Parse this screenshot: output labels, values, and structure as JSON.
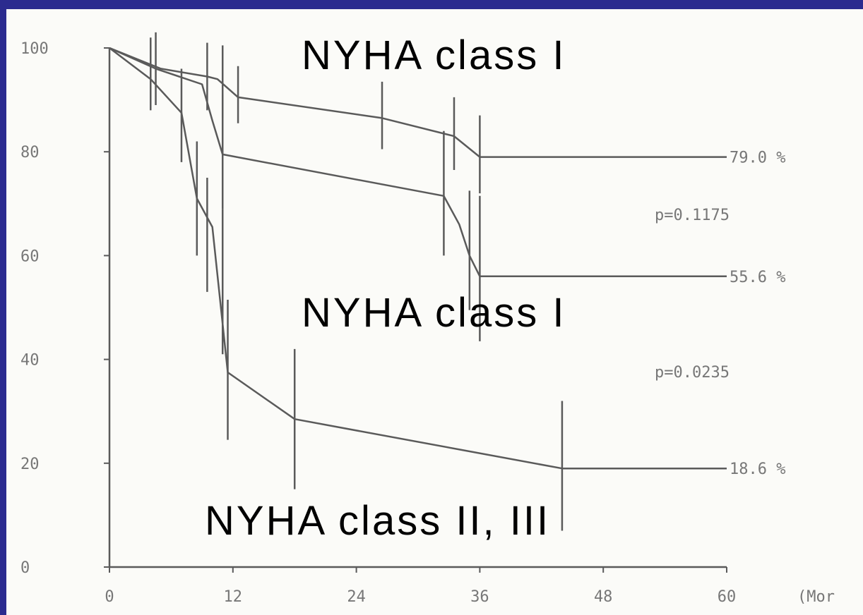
{
  "colors": {
    "background_frame": "#2b2b8f",
    "plot_bg": "#fbfbf8",
    "line": "#5a5a5a",
    "text": "#000000",
    "ticks": "#777777"
  },
  "chart_data": {
    "type": "line",
    "title": "",
    "xlabel": "(Mor",
    "ylabel": "",
    "xlim": [
      0,
      60
    ],
    "ylim": [
      0,
      100
    ],
    "x_ticks": [
      0,
      12,
      24,
      36,
      48,
      60
    ],
    "x_tick_labels": [
      "0",
      "12",
      "24",
      "36",
      "48",
      "60"
    ],
    "y_ticks": [
      0,
      20,
      40,
      60,
      80,
      100
    ],
    "y_tick_labels": [
      "0",
      "20",
      "40",
      "60",
      "80",
      "100"
    ],
    "grid": false,
    "series": [
      {
        "name": "NYHA class I",
        "x": [
          0,
          5,
          9.5,
          10.5,
          12.5,
          26.5,
          33.5,
          36,
          60
        ],
        "y": [
          100,
          96,
          94.5,
          94,
          90.5,
          86.5,
          83,
          79,
          79
        ],
        "end_label": "79.0 %",
        "error_bars": [
          [
            4.5,
            96,
            7
          ],
          [
            9.5,
            94.5,
            6.5
          ],
          [
            11,
            93.5,
            7
          ],
          [
            12.5,
            91,
            5.5
          ],
          [
            26.5,
            87,
            6.5
          ],
          [
            33.5,
            83.5,
            7
          ],
          [
            36,
            79.5,
            7.5
          ]
        ]
      },
      {
        "name": "NYHA class I",
        "x": [
          0,
          4.5,
          9,
          10,
          11,
          32.5,
          34,
          35,
          36,
          60
        ],
        "y": [
          100,
          96,
          93,
          86,
          79.5,
          71.5,
          66,
          60,
          56,
          56
        ],
        "end_label": "55.6 %",
        "error_bars": [
          [
            11,
            80,
            11
          ],
          [
            32.5,
            72,
            12
          ],
          [
            35,
            61,
            11.5
          ],
          [
            36,
            57.5,
            14
          ]
        ]
      },
      {
        "name": "NYHA class II, III",
        "x": [
          0,
          4,
          7,
          8.5,
          10,
          11.5,
          18,
          44,
          60
        ],
        "y": [
          100,
          94,
          87.5,
          71,
          65.5,
          37.5,
          28.5,
          19,
          19
        ],
        "end_label": "18.6 %",
        "error_bars": [
          [
            4,
            95,
            7
          ],
          [
            7,
            87,
            9
          ],
          [
            8.5,
            71,
            11
          ],
          [
            9.5,
            64,
            11
          ],
          [
            11,
            55,
            14
          ],
          [
            11.5,
            38,
            13.5
          ],
          [
            18,
            28.5,
            13.5
          ],
          [
            44,
            19.5,
            12.5
          ]
        ]
      }
    ],
    "annotations": [
      {
        "text": "p=0.1175",
        "between": [
          "79.0 %",
          "55.6 %"
        ]
      },
      {
        "text": "p=0.0235",
        "between": [
          "55.6 %",
          "18.6 %"
        ]
      }
    ]
  }
}
